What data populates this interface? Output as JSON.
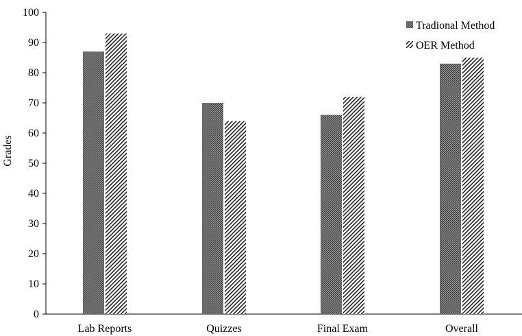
{
  "chart_data": {
    "type": "bar",
    "categories": [
      "Lab Reports",
      "Quizzes",
      "Final Exam",
      "Overall"
    ],
    "series": [
      {
        "name": "Tradional Method",
        "values": [
          87,
          70,
          66,
          83
        ],
        "pattern": "dense-crosshatch",
        "color": "#555555"
      },
      {
        "name": "OER Method",
        "values": [
          93,
          64,
          72,
          85
        ],
        "pattern": "diagonal-hatch",
        "color": "#333333"
      }
    ],
    "ylabel": "Grades",
    "ylim": [
      0,
      100
    ],
    "yticks": [
      0,
      10,
      20,
      30,
      40,
      50,
      60,
      70,
      80,
      90,
      100
    ],
    "grid": false,
    "legend_position": "top-right"
  }
}
